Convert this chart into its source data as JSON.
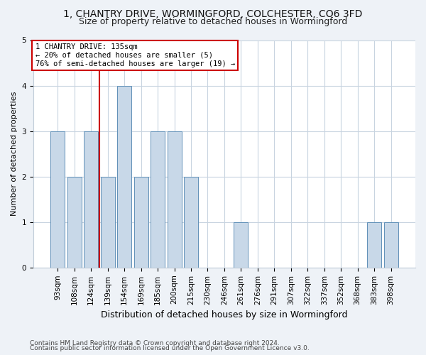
{
  "title": "1, CHANTRY DRIVE, WORMINGFORD, COLCHESTER, CO6 3FD",
  "subtitle": "Size of property relative to detached houses in Wormingford",
  "xlabel": "Distribution of detached houses by size in Wormingford",
  "ylabel": "Number of detached properties",
  "footnote1": "Contains HM Land Registry data © Crown copyright and database right 2024.",
  "footnote2": "Contains public sector information licensed under the Open Government Licence v3.0.",
  "categories": [
    "93sqm",
    "108sqm",
    "124sqm",
    "139sqm",
    "154sqm",
    "169sqm",
    "185sqm",
    "200sqm",
    "215sqm",
    "230sqm",
    "246sqm",
    "261sqm",
    "276sqm",
    "291sqm",
    "307sqm",
    "322sqm",
    "337sqm",
    "352sqm",
    "368sqm",
    "383sqm",
    "398sqm"
  ],
  "values": [
    3,
    2,
    3,
    2,
    4,
    2,
    3,
    3,
    2,
    0,
    0,
    1,
    0,
    0,
    0,
    0,
    0,
    0,
    0,
    1,
    1
  ],
  "bar_color": "#c8d8e8",
  "bar_edge_color": "#6090b8",
  "red_line_x": 2.5,
  "annotation_line1": "1 CHANTRY DRIVE: 135sqm",
  "annotation_line2": "← 20% of detached houses are smaller (5)",
  "annotation_line3": "76% of semi-detached houses are larger (19) →",
  "ylim": [
    0,
    5
  ],
  "yticks": [
    0,
    1,
    2,
    3,
    4,
    5
  ],
  "bg_color": "#eef2f7",
  "plot_bg_color": "#ffffff",
  "title_fontsize": 10,
  "subtitle_fontsize": 9,
  "xlabel_fontsize": 9,
  "ylabel_fontsize": 8,
  "tick_fontsize": 7.5,
  "annotation_fontsize": 7.5,
  "footnote_fontsize": 6.5,
  "annotation_box_color": "#ffffff",
  "annotation_box_edge": "#cc0000"
}
